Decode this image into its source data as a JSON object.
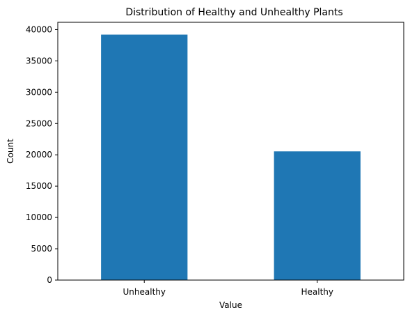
{
  "chart_data": {
    "type": "bar",
    "title": "Distribution of Healthy and Unhealthy Plants",
    "xlabel": "Value",
    "ylabel": "Count",
    "categories": [
      "Unhealthy",
      "Healthy"
    ],
    "values": [
      39200,
      20550
    ],
    "ylim": [
      0,
      41160
    ],
    "yticks": [
      0,
      5000,
      10000,
      15000,
      20000,
      25000,
      30000,
      35000,
      40000
    ],
    "grid": false,
    "legend": false,
    "bar_color": "#1f77b4"
  }
}
